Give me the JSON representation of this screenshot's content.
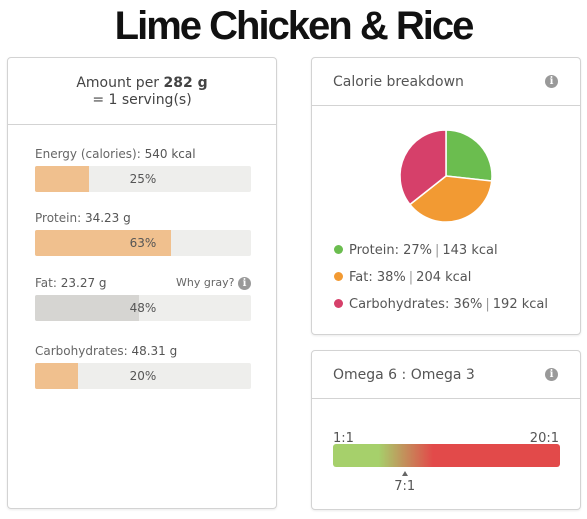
{
  "page_title": "Lime Chicken & Rice",
  "serving": {
    "prefix": "Amount per",
    "amount": "282 g",
    "line2": "= 1 serving(s)"
  },
  "nutrients": [
    {
      "label": "Energy (calories):",
      "value": "540 kcal",
      "percent": "25%",
      "fraction": 0.25,
      "color": "#f0c08e"
    },
    {
      "label": "Protein:",
      "value": "34.23 g",
      "percent": "63%",
      "fraction": 0.63,
      "color": "#f0c08e"
    },
    {
      "label": "Fat:",
      "value": "23.27 g",
      "percent": "48%",
      "fraction": 0.48,
      "color": "#d6d5d2",
      "note": "Why gray?"
    },
    {
      "label": "Carbohydrates:",
      "value": "48.31 g",
      "percent": "20%",
      "fraction": 0.2,
      "color": "#f0c08e"
    }
  ],
  "calorie_breakdown": {
    "title": "Calorie breakdown",
    "items": [
      {
        "name": "Protein:",
        "percent": "27%",
        "kcal": "143 kcal",
        "color": "#6bbd4f"
      },
      {
        "name": "Fat:",
        "percent": "38%",
        "kcal": "204 kcal",
        "color": "#f29a33"
      },
      {
        "name": "Carbohydrates:",
        "percent": "36%",
        "kcal": "192 kcal",
        "color": "#d6406a"
      }
    ]
  },
  "chart_data": {
    "type": "pie",
    "title": "Calorie breakdown",
    "categories": [
      "Protein",
      "Fat",
      "Carbohydrates"
    ],
    "values": [
      27,
      38,
      36
    ],
    "colors": [
      "#6bbd4f",
      "#f29a33",
      "#d6406a"
    ]
  },
  "omega": {
    "title": "Omega 6 : Omega 3",
    "scale_min": "1:1",
    "scale_max": "20:1",
    "value_label": "7:1",
    "value": 7,
    "min": 1,
    "max": 20,
    "colors": [
      "#a6d06b",
      "#e24a4a"
    ]
  }
}
